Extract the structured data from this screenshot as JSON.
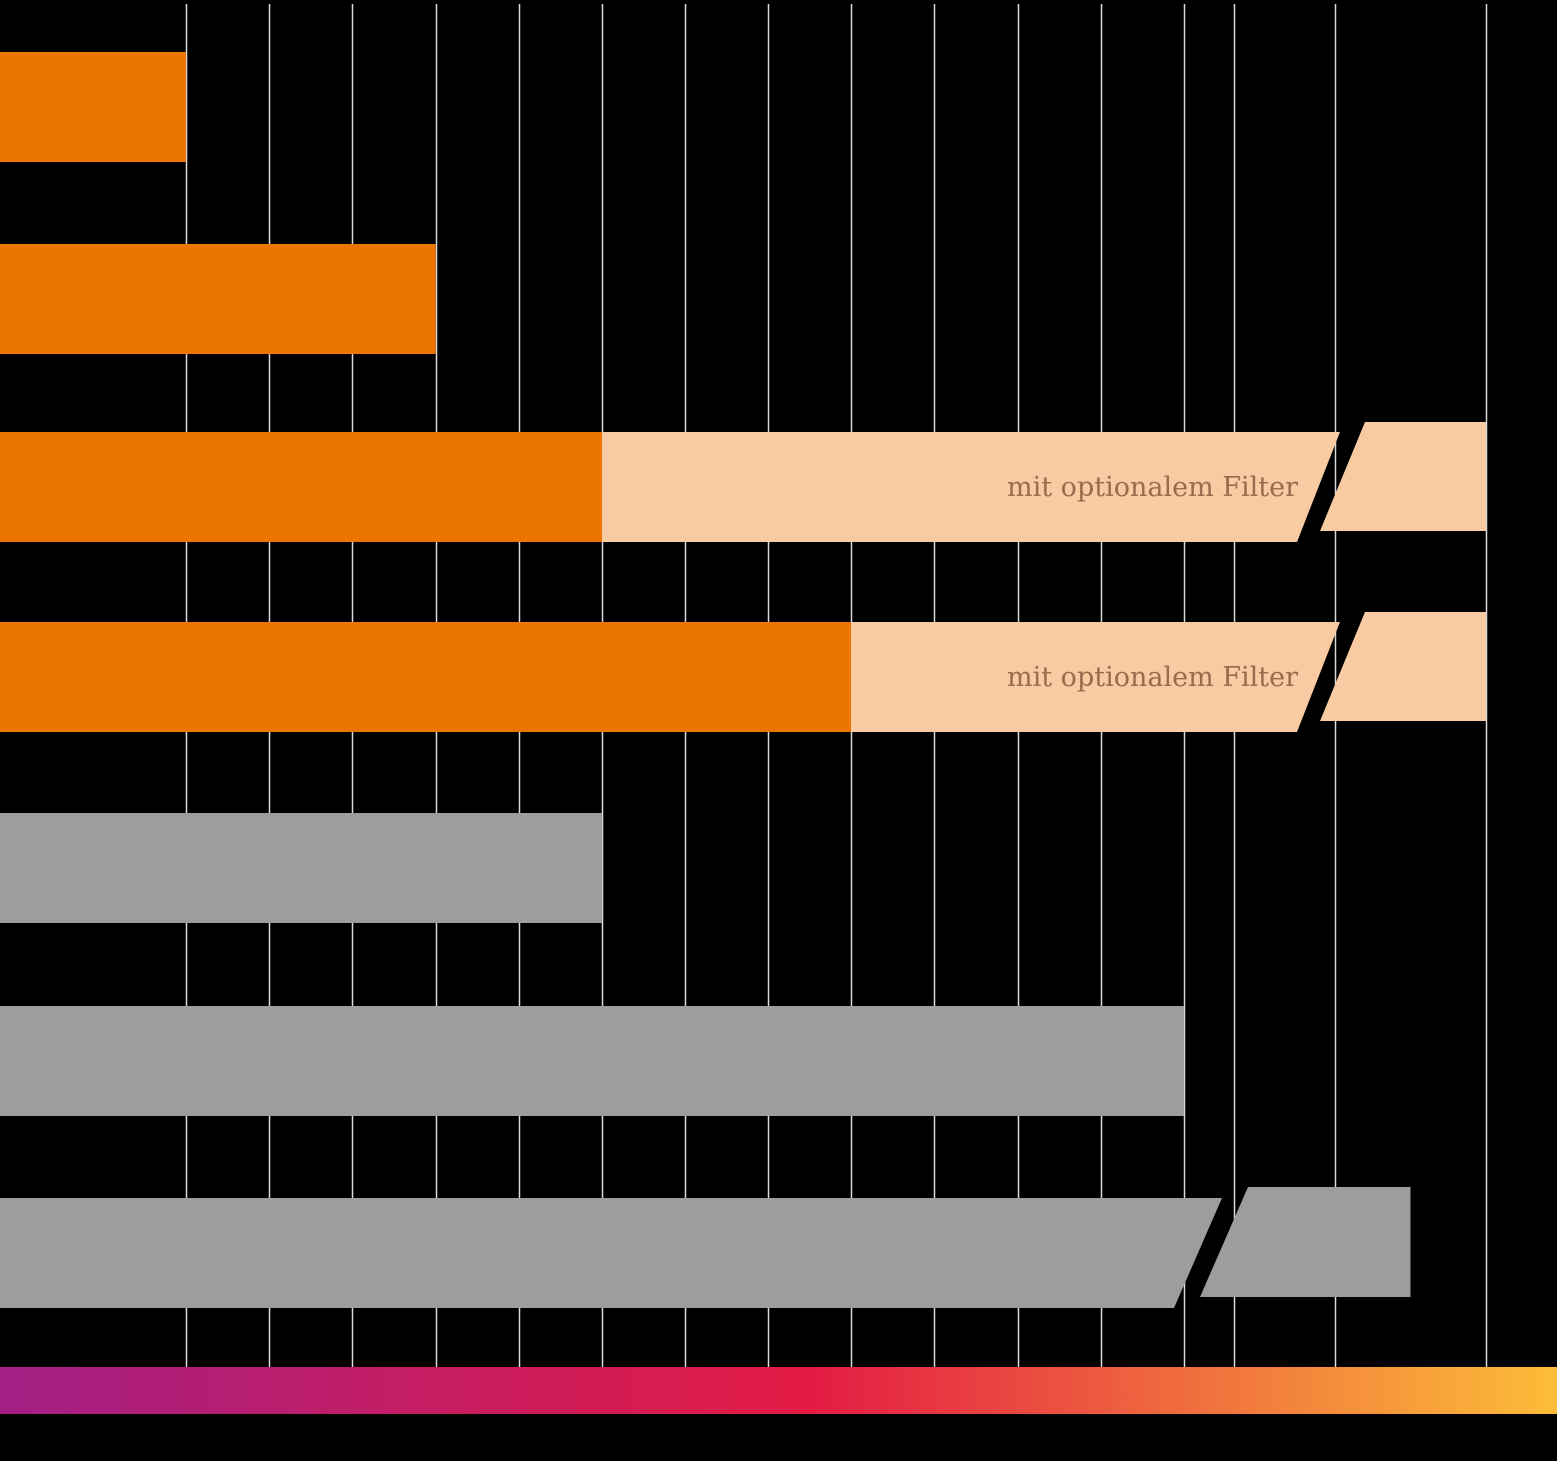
{
  "chart_data": {
    "type": "bar",
    "orientation": "horizontal",
    "title": "",
    "xlabel": "",
    "ylabel": "",
    "grid": true,
    "gridlines_x": [
      2,
      3,
      4,
      5,
      6,
      7,
      8,
      9,
      10,
      11,
      12,
      13,
      14,
      15,
      17,
      19
    ],
    "xlim": [
      0,
      19
    ],
    "categories": [
      "",
      "",
      "",
      "",
      "",
      "",
      ""
    ],
    "bars": [
      {
        "value": 2,
        "color": "#ec7400",
        "series": "orange"
      },
      {
        "value": 5,
        "color": "#ec7400",
        "series": "orange"
      },
      {
        "value": 7,
        "color": "#ec7400",
        "series": "orange",
        "extension": {
          "value": 19,
          "color": "#f9cba2",
          "label": "mit optionalem Filter",
          "axis_break": true
        }
      },
      {
        "value": 10,
        "color": "#ec7400",
        "series": "orange",
        "extension": {
          "value": 19,
          "color": "#f9cba2",
          "label": "mit optionalem Filter",
          "axis_break": true
        }
      },
      {
        "value": 7,
        "color": "#9d9d9d",
        "series": "gray"
      },
      {
        "value": 14,
        "color": "#9d9d9d",
        "series": "gray"
      },
      {
        "value": 18,
        "color": "#9d9d9d",
        "series": "gray",
        "axis_break": true
      }
    ],
    "legend": "none",
    "colors": {
      "background": "#000000",
      "grid": "#d9d9d9",
      "orange": "#ec7400",
      "light_orange": "#f9cba2",
      "gray": "#9d9d9d",
      "label_text": "#9a6b4c",
      "gradient": [
        "#a31f85",
        "#e31b44",
        "#fcbd38"
      ]
    }
  }
}
